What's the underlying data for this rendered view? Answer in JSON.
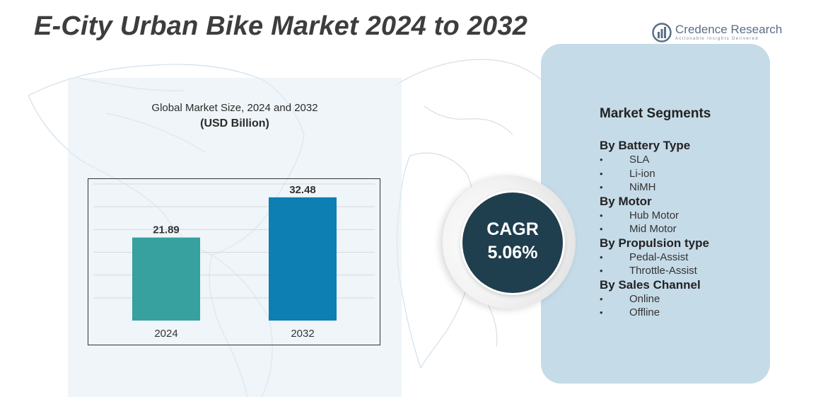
{
  "title": "E-City Urban Bike Market 2024 to 2032",
  "logo": {
    "name": "Credence Research",
    "tagline": "Actionable Insights Delivered",
    "icon": "bar-chart-circle-icon",
    "color": "#5a6f86"
  },
  "chart_data": {
    "type": "bar",
    "title": "Global Market Size, 2024 and 2032",
    "subtitle": "(USD Billion)",
    "categories": [
      "2024",
      "2032"
    ],
    "values": [
      21.89,
      32.48
    ],
    "data_labels": [
      "21.89",
      "32.48"
    ],
    "colors": [
      "#36a19f",
      "#0d7fb2"
    ],
    "ylim": [
      0,
      36
    ],
    "grid": true,
    "legend": "none"
  },
  "cagr": {
    "label": "CAGR",
    "value": "5.06%",
    "color": "#1f3e4e"
  },
  "segments": {
    "title": "Market Segments",
    "groups": [
      {
        "title": "By Battery Type",
        "items": [
          "SLA",
          "Li-ion",
          "NiMH"
        ]
      },
      {
        "title": "By Motor",
        "items": [
          "Hub Motor",
          "Mid Motor"
        ]
      },
      {
        "title": "By Propulsion type",
        "items": [
          "Pedal-Assist",
          "Throttle-Assist"
        ]
      },
      {
        "title": "By Sales Channel",
        "items": [
          "Online",
          "Offline"
        ]
      }
    ]
  }
}
